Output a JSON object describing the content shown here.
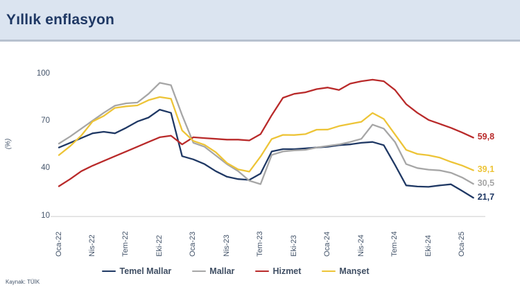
{
  "header": {
    "title": "Yıllık enflasyon"
  },
  "source_note": "Kaynak: TÜİK",
  "chart_data": {
    "type": "line",
    "title": "Yıllık enflasyon",
    "ylabel": "(%)",
    "ylim": [
      10,
      100
    ],
    "y_ticks": [
      10,
      40,
      70,
      100
    ],
    "grid": false,
    "legend_position": "bottom",
    "x_tick_every": 3,
    "x_tick_labels": [
      "Oca-22",
      "Nis-22",
      "Tem-22",
      "Eki-22",
      "Oca-23",
      "Nis-23",
      "Tem-23",
      "Eki-23",
      "Oca-24",
      "Nis-24",
      "Tem-24",
      "Eki-24",
      "Oca-25"
    ],
    "categories": [
      "Oca-22",
      "Şub-22",
      "Mar-22",
      "Nis-22",
      "May-22",
      "Haz-22",
      "Tem-22",
      "Ağu-22",
      "Eyl-22",
      "Eki-22",
      "Kas-22",
      "Ara-22",
      "Oca-23",
      "Şub-23",
      "Mar-23",
      "Nis-23",
      "May-23",
      "Haz-23",
      "Tem-23",
      "Ağu-23",
      "Eyl-23",
      "Eki-23",
      "Kas-23",
      "Ara-23",
      "Oca-24",
      "Şub-24",
      "Mar-24",
      "Nis-24",
      "May-24",
      "Haz-24",
      "Tem-24",
      "Ağu-24",
      "Eyl-24",
      "Eki-24",
      "Kas-24",
      "Ara-24",
      "Oca-25",
      "Şub-25"
    ],
    "series": [
      {
        "name": "Temel Mallar",
        "color": "#1f3864",
        "end_label": "21,7",
        "values": [
          53.5,
          56.5,
          59.5,
          62.5,
          63.5,
          62.5,
          66,
          70,
          72.5,
          77.5,
          75.5,
          48,
          46,
          43,
          38.5,
          35,
          33.5,
          33,
          37,
          51,
          52.5,
          52.5,
          53,
          53.5,
          54,
          55,
          55.5,
          56.5,
          57,
          55,
          42.5,
          29.5,
          28.8,
          28.6,
          29.5,
          30.2,
          26,
          21.7
        ]
      },
      {
        "name": "Mallar",
        "color": "#a6a6a6",
        "end_label": "30,5",
        "values": [
          56,
          60.5,
          65.5,
          70.5,
          75.5,
          80,
          81.5,
          82,
          87.5,
          94.5,
          93,
          74,
          56.5,
          54,
          48.5,
          43,
          38.5,
          32.5,
          30.3,
          48.8,
          51,
          51.7,
          52,
          53.5,
          54.5,
          55.5,
          57,
          59,
          68,
          65.5,
          57,
          43,
          40.5,
          39.5,
          39,
          37.5,
          34.5,
          30.5
        ]
      },
      {
        "name": "Hizmet",
        "color": "#b92a2a",
        "end_label": "59,8",
        "values": [
          29,
          33.5,
          38.5,
          42,
          45,
          48,
          51,
          54,
          57,
          60,
          61,
          55.5,
          60,
          59.5,
          59,
          58.5,
          58.5,
          58,
          62,
          74,
          85,
          87.5,
          88.5,
          90.5,
          91.5,
          90,
          94,
          95.5,
          96.5,
          95.5,
          90,
          81,
          75.5,
          71,
          68.5,
          66,
          63,
          59.8
        ]
      },
      {
        "name": "Manşet",
        "color": "#edc437",
        "end_label": "39,1",
        "values": [
          48.7,
          54.4,
          61.1,
          70,
          73.5,
          78.6,
          79.6,
          80.2,
          83.5,
          85.5,
          84.4,
          64.3,
          57.7,
          55.2,
          50.5,
          43.7,
          39.6,
          38.2,
          47.8,
          58.9,
          61.5,
          61.4,
          62,
          64.8,
          64.9,
          67.1,
          68.5,
          69.8,
          75.4,
          71.6,
          61.8,
          52,
          49.4,
          48.6,
          47.1,
          44.4,
          42.1,
          39.1
        ]
      }
    ],
    "axis_color": "#d9d9d9",
    "label_color": "#44546a"
  }
}
